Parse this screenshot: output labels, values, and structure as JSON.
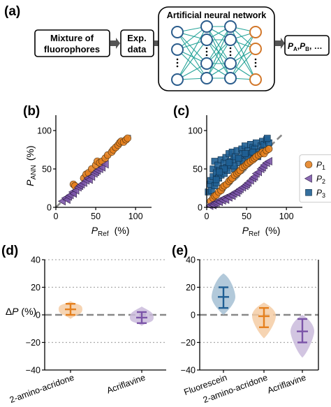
{
  "panel_labels": {
    "a": "(a)",
    "b": "(b)",
    "c": "(c)",
    "d": "(d)",
    "e": "(e)"
  },
  "workflow": {
    "box1": [
      "Mixture of",
      "fluorophores"
    ],
    "box2": [
      "Exp.",
      "data"
    ],
    "ann_title": "Artificial neural network",
    "output_main": "P",
    "output_subs": [
      "A",
      "B"
    ],
    "output_tail": ", …"
  },
  "colors": {
    "orange": "#e5801e",
    "purple": "#7b54a8",
    "blue": "#1f5f94",
    "ident_line": "#888888",
    "node_blue": "#2a5c8c",
    "node_orange": "#d2772a",
    "edge": "#25a398"
  },
  "chart_data": [
    {
      "panel": "b",
      "type": "scatter",
      "xlabel": "P",
      "xlabel_sub": "Ref",
      "xlabel_unit": "(%)",
      "ylabel": "P",
      "ylabel_sub": "ANN",
      "ylabel_unit": "(%)",
      "xlim": [
        0,
        120
      ],
      "ylim": [
        0,
        120
      ],
      "xticks": [
        "0",
        "50",
        "100"
      ],
      "yticks": [
        "0",
        "50",
        "100"
      ],
      "identity_line": true,
      "series": [
        {
          "marker": "circle",
          "color_key": "orange",
          "x": [
            22,
            24,
            35,
            38,
            41,
            45,
            50,
            52,
            55,
            58,
            62,
            65,
            70,
            72,
            75,
            78,
            80,
            82,
            85,
            88,
            90
          ],
          "y": [
            30,
            28,
            38,
            43,
            45,
            50,
            55,
            60,
            58,
            60,
            64,
            68,
            72,
            75,
            78,
            81,
            84,
            86,
            85,
            88,
            90
          ]
        },
        {
          "marker": "triangle-left",
          "color_key": "purple",
          "x": [
            8,
            12,
            14,
            16,
            18,
            21,
            22,
            25,
            28,
            30,
            32,
            35,
            38,
            40,
            42,
            45,
            48,
            50,
            52,
            55,
            58,
            62
          ],
          "y": [
            8,
            12,
            10,
            14,
            16,
            20,
            18,
            22,
            26,
            28,
            30,
            32,
            35,
            38,
            36,
            40,
            44,
            46,
            48,
            50,
            52,
            56
          ]
        }
      ]
    },
    {
      "panel": "c",
      "type": "scatter",
      "xlabel": "P",
      "xlabel_sub": "Ref",
      "xlabel_unit": "(%)",
      "xlim": [
        0,
        120
      ],
      "ylim": [
        0,
        120
      ],
      "xticks": [
        "0",
        "50",
        "100"
      ],
      "yticks": [
        "0",
        "50",
        "100"
      ],
      "identity_line": true,
      "legend": {
        "location": "right",
        "entries": [
          {
            "label": "P",
            "sub": "1",
            "marker": "circle",
            "color_key": "orange"
          },
          {
            "label": "P",
            "sub": "2",
            "marker": "triangle-left",
            "color_key": "purple"
          },
          {
            "label": "P",
            "sub": "3",
            "marker": "square",
            "color_key": "blue"
          }
        ]
      },
      "series": [
        {
          "marker": "square",
          "color_key": "blue",
          "x": [
            2,
            4,
            5,
            6,
            8,
            8,
            10,
            10,
            12,
            12,
            14,
            15,
            16,
            18,
            18,
            20,
            22,
            22,
            24,
            25,
            26,
            28,
            30,
            30,
            32,
            34,
            35,
            36,
            38,
            40,
            42,
            44,
            45,
            46,
            48,
            50,
            52,
            55,
            56,
            58,
            60,
            62,
            65,
            68,
            70,
            72,
            75,
            78,
            70,
            76,
            64,
            58,
            52,
            48,
            40,
            34,
            28,
            22,
            16,
            12
          ],
          "y": [
            20,
            30,
            35,
            22,
            40,
            50,
            28,
            60,
            45,
            32,
            55,
            38,
            48,
            62,
            42,
            50,
            58,
            44,
            65,
            52,
            48,
            70,
            60,
            55,
            72,
            62,
            50,
            66,
            74,
            58,
            64,
            76,
            70,
            60,
            80,
            68,
            74,
            82,
            70,
            78,
            76,
            84,
            72,
            80,
            86,
            82,
            88,
            84,
            74,
            90,
            66,
            72,
            64,
            70,
            64,
            54,
            58,
            50,
            46,
            36
          ]
        },
        {
          "marker": "circle",
          "color_key": "orange",
          "x": [
            5,
            8,
            10,
            12,
            15,
            18,
            20,
            22,
            25,
            28,
            30,
            32,
            35,
            38,
            40,
            42,
            45,
            48,
            50,
            52,
            55,
            58,
            60,
            62,
            65,
            68,
            70,
            72,
            75,
            78
          ],
          "y": [
            8,
            12,
            15,
            16,
            20,
            22,
            26,
            28,
            30,
            34,
            36,
            38,
            42,
            44,
            46,
            48,
            52,
            54,
            56,
            58,
            60,
            62,
            64,
            66,
            68,
            70,
            72,
            70,
            74,
            76
          ]
        },
        {
          "marker": "triangle-left",
          "color_key": "purple",
          "x": [
            4,
            6,
            8,
            10,
            12,
            14,
            16,
            18,
            20,
            22,
            24,
            26,
            28,
            30,
            32,
            34,
            36,
            38,
            40,
            42,
            45,
            48,
            50,
            52,
            55,
            58,
            60,
            62,
            65,
            68,
            70,
            72,
            75,
            78
          ],
          "y": [
            2,
            4,
            3,
            5,
            6,
            8,
            7,
            10,
            9,
            12,
            10,
            14,
            13,
            16,
            15,
            18,
            20,
            19,
            22,
            24,
            26,
            28,
            30,
            32,
            35,
            38,
            40,
            44,
            46,
            50,
            52,
            55,
            58,
            60
          ]
        }
      ]
    },
    {
      "panel": "d",
      "type": "violin",
      "ylabel": "ΔP (%)",
      "ylim": [
        -40,
        40
      ],
      "yticks": [
        "40",
        "20",
        "0",
        "−20",
        "−40"
      ],
      "dotted_gridlines": [
        40,
        20,
        -20
      ],
      "zero_line": true,
      "categories": [
        "2-amino-acridone",
        "Acriflavine"
      ],
      "series": [
        {
          "name": "2-amino-acridone",
          "color_key": "orange",
          "mean": 4,
          "low": 0,
          "high": 8,
          "min": -3,
          "max": 10
        },
        {
          "name": "Acriflavine",
          "color_key": "purple",
          "mean": -2,
          "low": -6,
          "high": 2,
          "min": -8,
          "max": 6
        }
      ]
    },
    {
      "panel": "e",
      "type": "violin",
      "ylim": [
        -40,
        40
      ],
      "yticks": [
        "40",
        "20",
        "0",
        "−20",
        "−40"
      ],
      "dotted_gridlines": [
        40,
        20,
        -20
      ],
      "zero_line": true,
      "categories": [
        "Fluorescein",
        "2-amino-acridone",
        "Acriflavine"
      ],
      "series": [
        {
          "name": "Fluorescein",
          "color_key": "blue",
          "mean": 13,
          "low": 5,
          "high": 20,
          "min": 0,
          "max": 30
        },
        {
          "name": "2-amino-acridone",
          "color_key": "orange",
          "mean": -1,
          "low": -9,
          "high": 5,
          "min": -17,
          "max": 9
        },
        {
          "name": "Acriflavine",
          "color_key": "purple",
          "mean": -12,
          "low": -20,
          "high": -3,
          "min": -31,
          "max": 0
        }
      ]
    }
  ]
}
